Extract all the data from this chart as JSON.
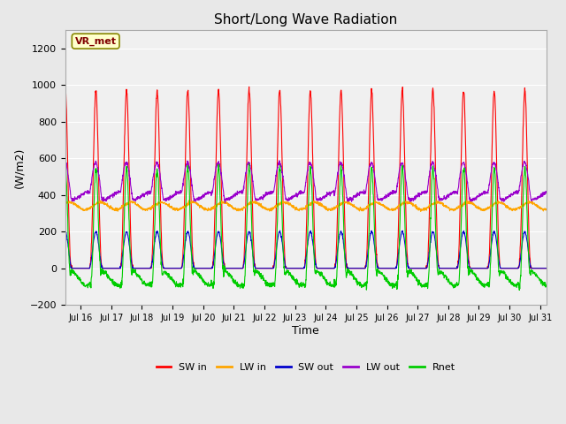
{
  "title": "Short/Long Wave Radiation",
  "xlabel": "Time",
  "ylabel": "(W/m2)",
  "ylim": [
    -200,
    1300
  ],
  "xlim_days": [
    15.5,
    31.2
  ],
  "fig_bg_color": "#e8e8e8",
  "plot_bg_color": "#e8e8e8",
  "plot_inner_bg": "#f0f0f0",
  "colors": {
    "SW_in": "#ff0000",
    "LW_in": "#ffa500",
    "SW_out": "#0000cc",
    "LW_out": "#9900cc",
    "Rnet": "#00cc00"
  },
  "legend_labels": [
    "SW in",
    "LW in",
    "SW out",
    "LW out",
    "Rnet"
  ],
  "annotation_text": "VR_met",
  "yticks": [
    -200,
    0,
    200,
    400,
    600,
    800,
    1000,
    1200
  ],
  "xtick_labels": [
    "Jul 16",
    "Jul 17",
    "Jul 18",
    "Jul 19",
    "Jul 20",
    "Jul 21",
    "Jul 22",
    "Jul 23",
    "Jul 24",
    "Jul 25",
    "Jul 26",
    "Jul 27",
    "Jul 28",
    "Jul 29",
    "Jul 30",
    "Jul 31"
  ],
  "xtick_positions": [
    16,
    17,
    18,
    19,
    20,
    21,
    22,
    23,
    24,
    25,
    26,
    27,
    28,
    29,
    30,
    31
  ]
}
